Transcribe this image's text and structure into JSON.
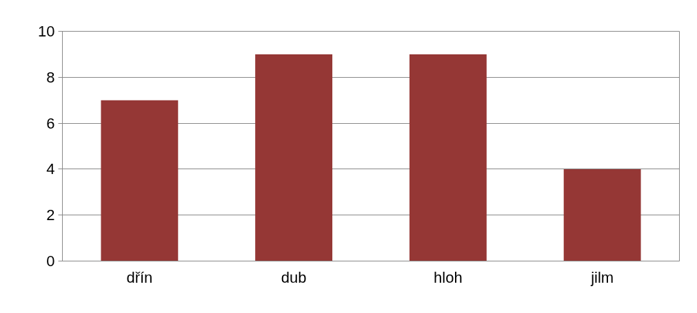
{
  "chart_data": {
    "type": "bar",
    "categories": [
      "dřín",
      "dub",
      "hloh",
      "jilm"
    ],
    "values": [
      7,
      9,
      9,
      4
    ],
    "color": "#953735",
    "ylim": [
      0,
      10
    ],
    "yticks": [
      0,
      2,
      4,
      6,
      8,
      10
    ],
    "grid": "y"
  }
}
